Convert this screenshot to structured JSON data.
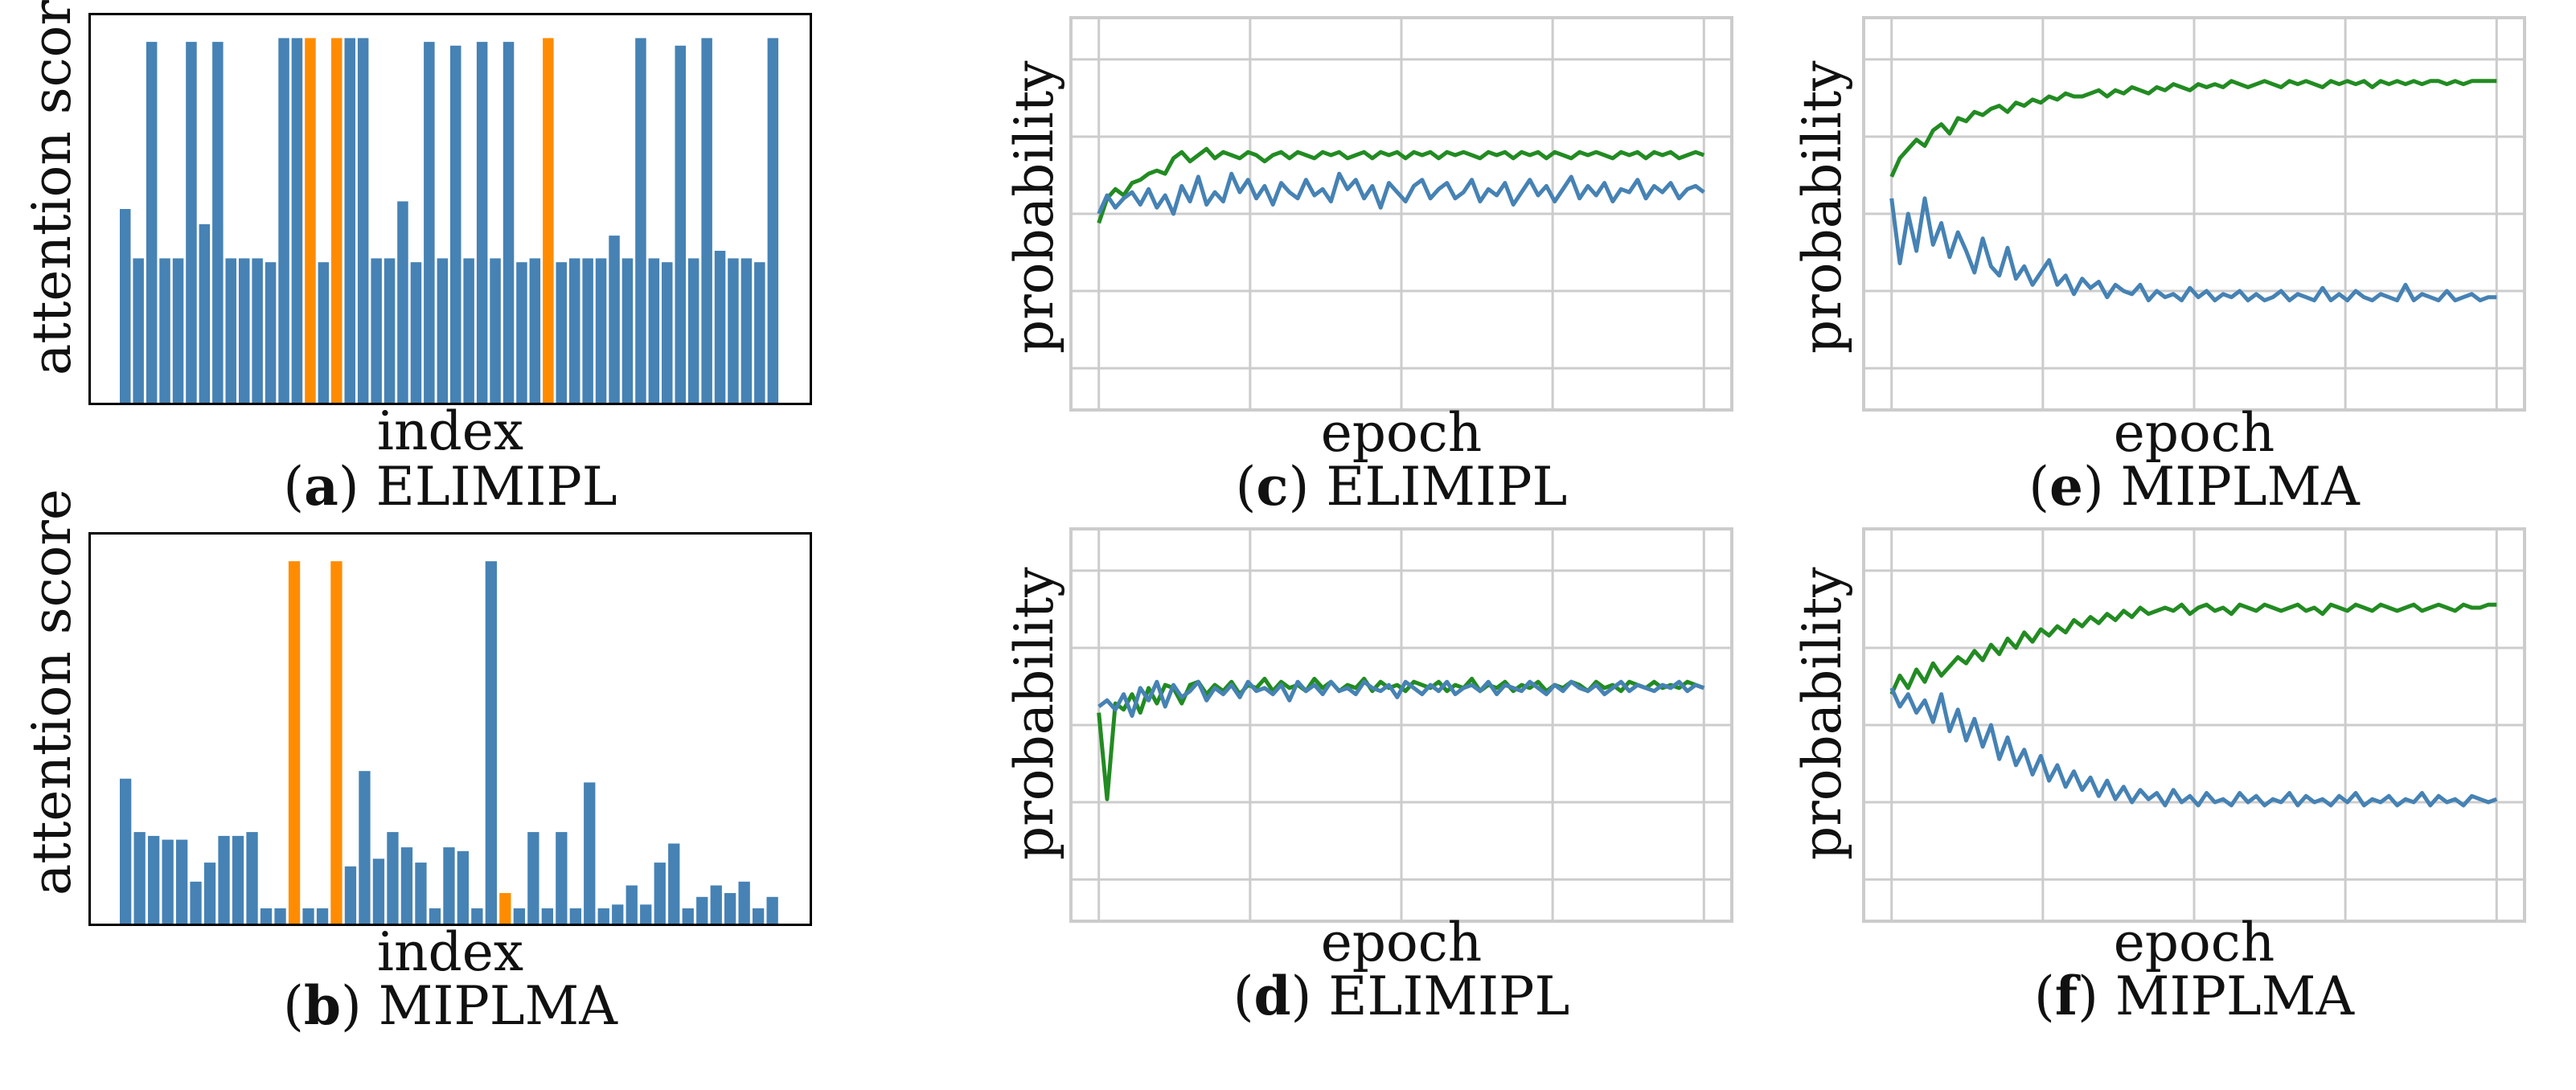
{
  "colors": {
    "blue": "#4682b4",
    "orange": "#ff8c00",
    "green": "#228b22",
    "grid": "#cccccc"
  },
  "panels": {
    "a": {
      "letter": "a",
      "method": "ELIMIPL"
    },
    "b": {
      "letter": "b",
      "method": "MIPLMA"
    },
    "c": {
      "letter": "c",
      "method": "ELIMIPL"
    },
    "d": {
      "letter": "d",
      "method": "ELIMIPL"
    },
    "e": {
      "letter": "e",
      "method": "MIPLMA"
    },
    "f": {
      "letter": "f",
      "method": "MIPLMA"
    }
  },
  "chart_data": [
    {
      "id": "a",
      "type": "bar",
      "xlabel": "index",
      "ylabel": "attention score",
      "ylim": [
        0,
        1
      ],
      "grid": false,
      "highlight_indices": [
        14,
        16,
        32
      ],
      "values": [
        0.51,
        0.38,
        0.95,
        0.38,
        0.38,
        0.95,
        0.47,
        0.95,
        0.38,
        0.38,
        0.38,
        0.37,
        0.96,
        0.96,
        0.96,
        0.37,
        0.96,
        0.96,
        0.96,
        0.38,
        0.38,
        0.53,
        0.37,
        0.95,
        0.38,
        0.94,
        0.38,
        0.95,
        0.38,
        0.95,
        0.37,
        0.38,
        0.96,
        0.37,
        0.38,
        0.38,
        0.38,
        0.44,
        0.38,
        0.96,
        0.38,
        0.37,
        0.94,
        0.38,
        0.96,
        0.4,
        0.38,
        0.38,
        0.37,
        0.96
      ]
    },
    {
      "id": "b",
      "type": "bar",
      "xlabel": "index",
      "ylabel": "attention score",
      "ylim": [
        0,
        1
      ],
      "grid": false,
      "highlight_indices": [
        12,
        15,
        27
      ],
      "values": [
        0.38,
        0.24,
        0.23,
        0.22,
        0.22,
        0.11,
        0.16,
        0.23,
        0.23,
        0.24,
        0.04,
        0.04,
        0.95,
        0.04,
        0.04,
        0.95,
        0.15,
        0.4,
        0.17,
        0.24,
        0.2,
        0.16,
        0.04,
        0.2,
        0.19,
        0.04,
        0.95,
        0.08,
        0.04,
        0.24,
        0.04,
        0.24,
        0.04,
        0.37,
        0.04,
        0.05,
        0.1,
        0.05,
        0.16,
        0.21,
        0.04,
        0.07,
        0.1,
        0.08,
        0.11,
        0.04,
        0.07
      ]
    },
    {
      "id": "c",
      "type": "line",
      "xlabel": "epoch",
      "ylabel": "probability",
      "ylim": [
        0,
        1
      ],
      "grid": true,
      "series": [
        {
          "color": "green",
          "values": [
            0.47,
            0.55,
            0.58,
            0.56,
            0.6,
            0.61,
            0.63,
            0.64,
            0.63,
            0.68,
            0.7,
            0.67,
            0.69,
            0.71,
            0.68,
            0.7,
            0.69,
            0.68,
            0.7,
            0.69,
            0.67,
            0.69,
            0.7,
            0.68,
            0.7,
            0.69,
            0.68,
            0.7,
            0.69,
            0.7,
            0.68,
            0.69,
            0.7,
            0.68,
            0.7,
            0.69,
            0.7,
            0.68,
            0.7,
            0.69,
            0.7,
            0.68,
            0.7,
            0.69,
            0.7,
            0.69,
            0.68,
            0.7,
            0.69,
            0.7,
            0.68,
            0.7,
            0.69,
            0.7,
            0.68,
            0.7,
            0.69,
            0.68,
            0.7,
            0.69,
            0.7,
            0.69,
            0.68,
            0.7,
            0.69,
            0.7,
            0.68,
            0.7,
            0.69,
            0.7,
            0.68,
            0.69,
            0.7,
            0.69
          ]
        },
        {
          "color": "blue",
          "values": [
            0.5,
            0.56,
            0.52,
            0.55,
            0.57,
            0.53,
            0.58,
            0.52,
            0.56,
            0.5,
            0.59,
            0.54,
            0.62,
            0.53,
            0.57,
            0.54,
            0.63,
            0.57,
            0.61,
            0.55,
            0.59,
            0.53,
            0.6,
            0.57,
            0.55,
            0.61,
            0.56,
            0.58,
            0.54,
            0.63,
            0.58,
            0.61,
            0.55,
            0.59,
            0.52,
            0.6,
            0.57,
            0.54,
            0.59,
            0.61,
            0.55,
            0.58,
            0.6,
            0.55,
            0.57,
            0.61,
            0.54,
            0.58,
            0.56,
            0.6,
            0.53,
            0.57,
            0.61,
            0.56,
            0.59,
            0.54,
            0.58,
            0.62,
            0.55,
            0.59,
            0.56,
            0.6,
            0.54,
            0.58,
            0.57,
            0.61,
            0.55,
            0.59,
            0.57,
            0.6,
            0.55,
            0.58,
            0.59,
            0.57
          ]
        }
      ]
    },
    {
      "id": "d",
      "type": "line",
      "xlabel": "epoch",
      "ylabel": "probability",
      "ylim": [
        0,
        1
      ],
      "grid": true,
      "series": [
        {
          "color": "green",
          "values": [
            0.54,
            0.26,
            0.57,
            0.55,
            0.6,
            0.54,
            0.62,
            0.57,
            0.63,
            0.62,
            0.57,
            0.63,
            0.64,
            0.6,
            0.63,
            0.61,
            0.64,
            0.6,
            0.63,
            0.62,
            0.65,
            0.61,
            0.64,
            0.62,
            0.63,
            0.61,
            0.65,
            0.62,
            0.64,
            0.61,
            0.63,
            0.62,
            0.65,
            0.61,
            0.64,
            0.62,
            0.63,
            0.61,
            0.64,
            0.63,
            0.62,
            0.64,
            0.61,
            0.63,
            0.62,
            0.65,
            0.61,
            0.63,
            0.62,
            0.64,
            0.61,
            0.63,
            0.62,
            0.64,
            0.61,
            0.63,
            0.62,
            0.64,
            0.63,
            0.61,
            0.64,
            0.62,
            0.63,
            0.61,
            0.64,
            0.63,
            0.62,
            0.64,
            0.62,
            0.63,
            0.62,
            0.64,
            0.63,
            0.62
          ]
        },
        {
          "color": "blue",
          "values": [
            0.56,
            0.58,
            0.55,
            0.6,
            0.53,
            0.62,
            0.58,
            0.64,
            0.56,
            0.63,
            0.59,
            0.61,
            0.64,
            0.58,
            0.62,
            0.6,
            0.63,
            0.59,
            0.64,
            0.61,
            0.62,
            0.6,
            0.63,
            0.58,
            0.64,
            0.61,
            0.63,
            0.6,
            0.64,
            0.61,
            0.62,
            0.6,
            0.64,
            0.62,
            0.61,
            0.63,
            0.59,
            0.64,
            0.62,
            0.6,
            0.63,
            0.61,
            0.64,
            0.6,
            0.62,
            0.63,
            0.61,
            0.64,
            0.6,
            0.63,
            0.62,
            0.61,
            0.64,
            0.62,
            0.6,
            0.63,
            0.61,
            0.64,
            0.62,
            0.61,
            0.63,
            0.6,
            0.62,
            0.64,
            0.61,
            0.63,
            0.62,
            0.61,
            0.63,
            0.62,
            0.64,
            0.61,
            0.63,
            0.62
          ]
        }
      ]
    },
    {
      "id": "e",
      "type": "line",
      "xlabel": "epoch",
      "ylabel": "probability",
      "ylim": [
        0,
        1
      ],
      "grid": true,
      "series": [
        {
          "color": "green",
          "values": [
            0.62,
            0.68,
            0.71,
            0.74,
            0.72,
            0.77,
            0.79,
            0.76,
            0.81,
            0.8,
            0.83,
            0.82,
            0.84,
            0.85,
            0.83,
            0.86,
            0.85,
            0.87,
            0.86,
            0.88,
            0.87,
            0.89,
            0.88,
            0.88,
            0.89,
            0.9,
            0.88,
            0.9,
            0.89,
            0.91,
            0.9,
            0.89,
            0.91,
            0.9,
            0.92,
            0.91,
            0.9,
            0.92,
            0.91,
            0.92,
            0.91,
            0.93,
            0.92,
            0.91,
            0.92,
            0.93,
            0.92,
            0.91,
            0.93,
            0.92,
            0.93,
            0.92,
            0.91,
            0.93,
            0.92,
            0.93,
            0.92,
            0.93,
            0.91,
            0.93,
            0.92,
            0.93,
            0.92,
            0.93,
            0.92,
            0.93,
            0.93,
            0.92,
            0.93,
            0.92,
            0.93,
            0.93,
            0.93,
            0.93
          ]
        },
        {
          "color": "blue",
          "values": [
            0.55,
            0.34,
            0.5,
            0.38,
            0.55,
            0.4,
            0.47,
            0.36,
            0.44,
            0.38,
            0.31,
            0.42,
            0.33,
            0.3,
            0.39,
            0.29,
            0.33,
            0.27,
            0.31,
            0.35,
            0.27,
            0.3,
            0.24,
            0.29,
            0.26,
            0.28,
            0.23,
            0.27,
            0.25,
            0.24,
            0.27,
            0.22,
            0.25,
            0.23,
            0.24,
            0.22,
            0.26,
            0.23,
            0.25,
            0.22,
            0.24,
            0.23,
            0.25,
            0.22,
            0.24,
            0.22,
            0.23,
            0.25,
            0.22,
            0.24,
            0.23,
            0.22,
            0.26,
            0.22,
            0.24,
            0.22,
            0.25,
            0.23,
            0.22,
            0.24,
            0.23,
            0.22,
            0.27,
            0.22,
            0.24,
            0.23,
            0.22,
            0.25,
            0.22,
            0.23,
            0.24,
            0.22,
            0.23,
            0.23
          ]
        }
      ]
    },
    {
      "id": "f",
      "type": "line",
      "xlabel": "epoch",
      "ylabel": "probability",
      "ylim": [
        0,
        1
      ],
      "grid": true,
      "series": [
        {
          "color": "green",
          "values": [
            0.6,
            0.66,
            0.62,
            0.68,
            0.64,
            0.7,
            0.66,
            0.69,
            0.72,
            0.7,
            0.74,
            0.71,
            0.76,
            0.73,
            0.78,
            0.75,
            0.8,
            0.77,
            0.81,
            0.79,
            0.82,
            0.8,
            0.84,
            0.82,
            0.85,
            0.83,
            0.86,
            0.84,
            0.87,
            0.85,
            0.88,
            0.86,
            0.87,
            0.88,
            0.87,
            0.89,
            0.86,
            0.88,
            0.89,
            0.87,
            0.88,
            0.86,
            0.89,
            0.88,
            0.87,
            0.89,
            0.88,
            0.87,
            0.88,
            0.89,
            0.87,
            0.88,
            0.86,
            0.89,
            0.88,
            0.87,
            0.89,
            0.88,
            0.87,
            0.89,
            0.88,
            0.87,
            0.88,
            0.89,
            0.87,
            0.88,
            0.89,
            0.88,
            0.87,
            0.89,
            0.88,
            0.88,
            0.89,
            0.89
          ]
        },
        {
          "color": "blue",
          "values": [
            0.62,
            0.56,
            0.6,
            0.54,
            0.58,
            0.51,
            0.6,
            0.48,
            0.55,
            0.45,
            0.52,
            0.43,
            0.5,
            0.39,
            0.46,
            0.37,
            0.42,
            0.34,
            0.4,
            0.32,
            0.37,
            0.3,
            0.35,
            0.29,
            0.33,
            0.27,
            0.32,
            0.26,
            0.3,
            0.25,
            0.29,
            0.26,
            0.28,
            0.24,
            0.29,
            0.25,
            0.27,
            0.24,
            0.28,
            0.25,
            0.26,
            0.24,
            0.28,
            0.25,
            0.27,
            0.24,
            0.26,
            0.25,
            0.28,
            0.24,
            0.27,
            0.25,
            0.26,
            0.24,
            0.27,
            0.25,
            0.28,
            0.24,
            0.26,
            0.25,
            0.27,
            0.24,
            0.26,
            0.25,
            0.28,
            0.24,
            0.27,
            0.25,
            0.26,
            0.24,
            0.27,
            0.26,
            0.25,
            0.26
          ]
        }
      ]
    }
  ]
}
